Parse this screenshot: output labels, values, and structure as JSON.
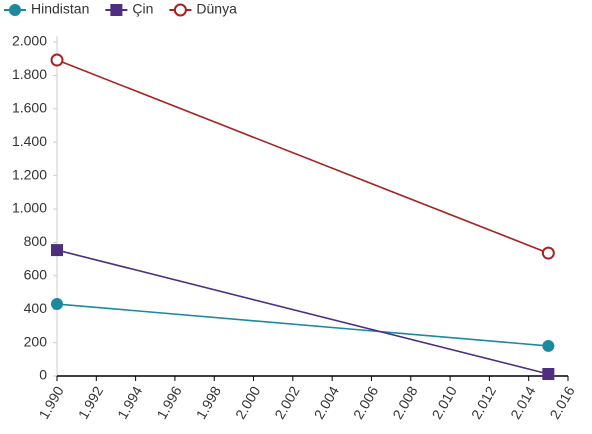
{
  "chart_data": {
    "type": "line",
    "x": [
      1990,
      2015
    ],
    "series": [
      {
        "name": "Hindistan",
        "color": "#1b8a9e",
        "marker": "circle",
        "values": [
          431,
          180
        ]
      },
      {
        "name": "Çin",
        "color": "#4f2d7f",
        "marker": "square",
        "values": [
          754,
          12
        ]
      },
      {
        "name": "Dünya",
        "color": "#a62121",
        "marker": "open-circle",
        "values": [
          1892,
          736
        ]
      }
    ],
    "xlim": [
      1990,
      2016
    ],
    "xticks": [
      {
        "value": 1990,
        "label": "1.990"
      },
      {
        "value": 1992,
        "label": "1.992"
      },
      {
        "value": 1994,
        "label": "1.994"
      },
      {
        "value": 1996,
        "label": "1.996"
      },
      {
        "value": 1998,
        "label": "1.998"
      },
      {
        "value": 2000,
        "label": "2.000"
      },
      {
        "value": 2002,
        "label": "2.002"
      },
      {
        "value": 2004,
        "label": "2.004"
      },
      {
        "value": 2006,
        "label": "2.006"
      },
      {
        "value": 2008,
        "label": "2.008"
      },
      {
        "value": 2010,
        "label": "2.010"
      },
      {
        "value": 2012,
        "label": "2.012"
      },
      {
        "value": 2014,
        "label": "2.014"
      },
      {
        "value": 2016,
        "label": "2.016"
      }
    ],
    "ylim": [
      0,
      2000
    ],
    "yticks": [
      0,
      200,
      400,
      600,
      800,
      {
        "value": 1000,
        "label": "1.000"
      },
      {
        "value": 1200,
        "label": "1.200"
      },
      {
        "value": 1400,
        "label": "1.400"
      },
      {
        "value": 1600,
        "label": "1.600"
      },
      {
        "value": 1800,
        "label": "1.800"
      },
      {
        "value": 2000,
        "label": "2.000"
      }
    ],
    "legend": "top-left"
  }
}
